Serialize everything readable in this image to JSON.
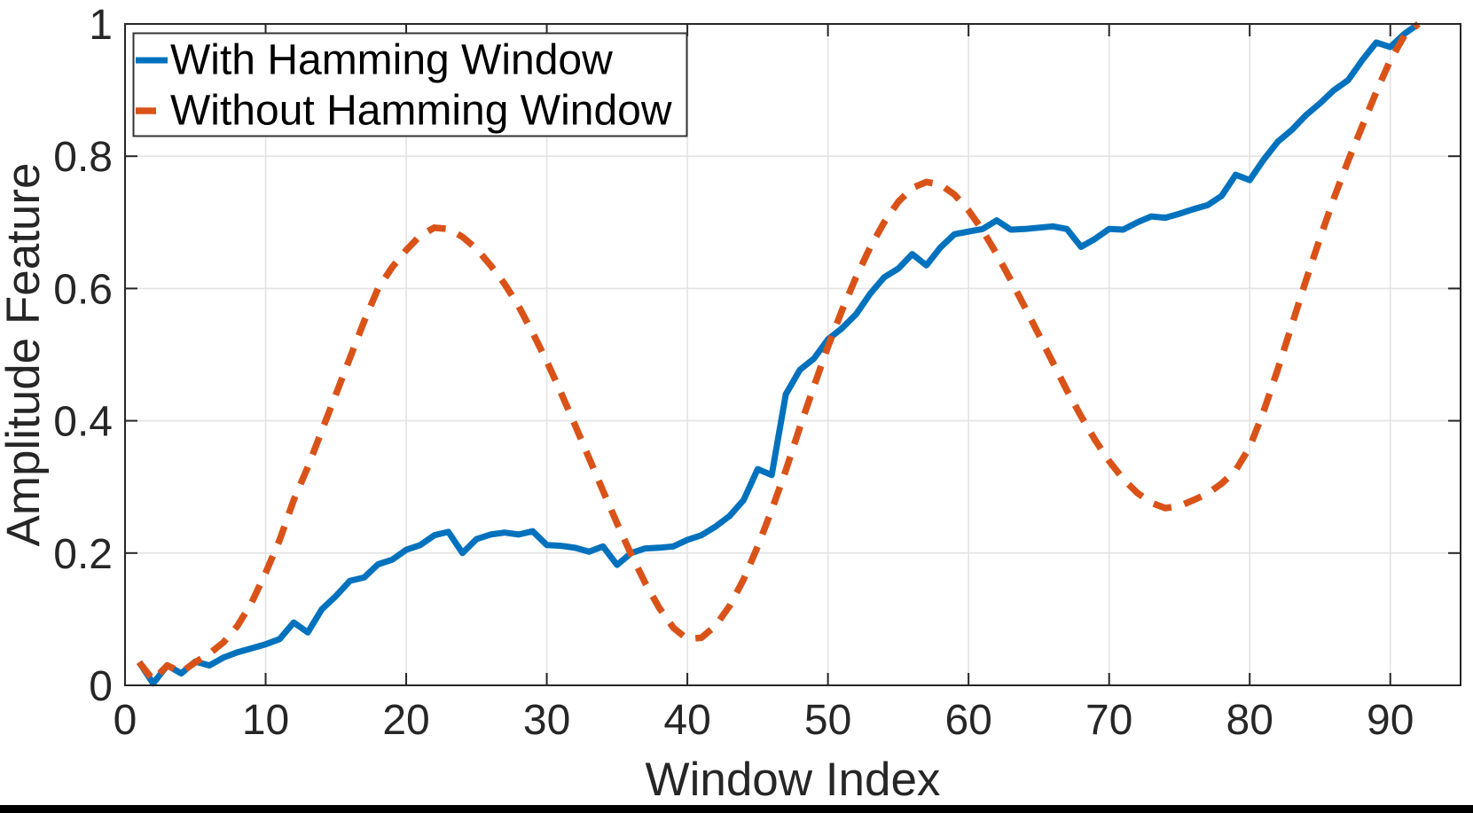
{
  "chart_data": {
    "type": "line",
    "title": "",
    "xlabel": "Window Index",
    "ylabel": "Amplitude Feature",
    "xlim": [
      0,
      95
    ],
    "ylim": [
      0,
      1
    ],
    "x_ticks": [
      0,
      10,
      20,
      30,
      40,
      50,
      60,
      70,
      80,
      90
    ],
    "x_tick_labels": [
      "0",
      "10",
      "20",
      "30",
      "40",
      "50",
      "60",
      "70",
      "80",
      "90"
    ],
    "y_ticks": [
      0,
      0.2,
      0.4,
      0.6,
      0.8,
      1
    ],
    "y_tick_labels": [
      "0",
      "0.2",
      "0.4",
      "0.6",
      "0.8",
      "1"
    ],
    "grid": true,
    "legend_position": "top-left",
    "x": {
      "start": 1,
      "step": 1,
      "count": 92
    },
    "series": [
      {
        "name": "With Hamming Window",
        "color": "#0072BD",
        "style": "solid",
        "values": [
          0.035,
          0.003,
          0.03,
          0.018,
          0.036,
          0.03,
          0.042,
          0.05,
          0.056,
          0.062,
          0.07,
          0.095,
          0.08,
          0.115,
          0.135,
          0.158,
          0.163,
          0.183,
          0.19,
          0.205,
          0.212,
          0.227,
          0.232,
          0.2,
          0.221,
          0.228,
          0.231,
          0.228,
          0.233,
          0.212,
          0.211,
          0.208,
          0.202,
          0.21,
          0.182,
          0.2,
          0.207,
          0.208,
          0.21,
          0.22,
          0.227,
          0.24,
          0.256,
          0.28,
          0.327,
          0.318,
          0.44,
          0.477,
          0.494,
          0.523,
          0.54,
          0.561,
          0.592,
          0.617,
          0.63,
          0.652,
          0.635,
          0.662,
          0.682,
          0.686,
          0.69,
          0.703,
          0.689,
          0.69,
          0.692,
          0.694,
          0.69,
          0.663,
          0.675,
          0.69,
          0.689,
          0.7,
          0.709,
          0.707,
          0.713,
          0.72,
          0.726,
          0.74,
          0.772,
          0.764,
          0.795,
          0.822,
          0.84,
          0.862,
          0.88,
          0.9,
          0.915,
          0.945,
          0.972,
          0.965,
          0.985,
          1.0
        ]
      },
      {
        "name": "Without Hamming Window",
        "color": "#D95319",
        "style": "dashed",
        "values": [
          0.035,
          0.008,
          0.03,
          0.02,
          0.035,
          0.048,
          0.065,
          0.09,
          0.125,
          0.17,
          0.22,
          0.28,
          0.33,
          0.385,
          0.44,
          0.495,
          0.55,
          0.6,
          0.632,
          0.658,
          0.68,
          0.692,
          0.69,
          0.678,
          0.66,
          0.635,
          0.607,
          0.573,
          0.533,
          0.49,
          0.443,
          0.394,
          0.344,
          0.294,
          0.245,
          0.198,
          0.155,
          0.117,
          0.087,
          0.07,
          0.072,
          0.09,
          0.12,
          0.16,
          0.21,
          0.265,
          0.325,
          0.39,
          0.452,
          0.512,
          0.567,
          0.617,
          0.662,
          0.7,
          0.731,
          0.752,
          0.761,
          0.757,
          0.742,
          0.718,
          0.688,
          0.652,
          0.613,
          0.572,
          0.53,
          0.488,
          0.446,
          0.407,
          0.371,
          0.339,
          0.312,
          0.291,
          0.276,
          0.268,
          0.271,
          0.28,
          0.29,
          0.305,
          0.325,
          0.36,
          0.415,
          0.478,
          0.545,
          0.612,
          0.676,
          0.737,
          0.793,
          0.845,
          0.897,
          0.945,
          0.982,
          1.0
        ]
      }
    ]
  },
  "colors": {
    "series_blue": "#0072BD",
    "series_orange": "#D95319",
    "axis": "#262626",
    "grid": "#e3e3e3",
    "background": "#ffffff",
    "legend_border": "#333333",
    "bottom_bar": "#000000"
  }
}
